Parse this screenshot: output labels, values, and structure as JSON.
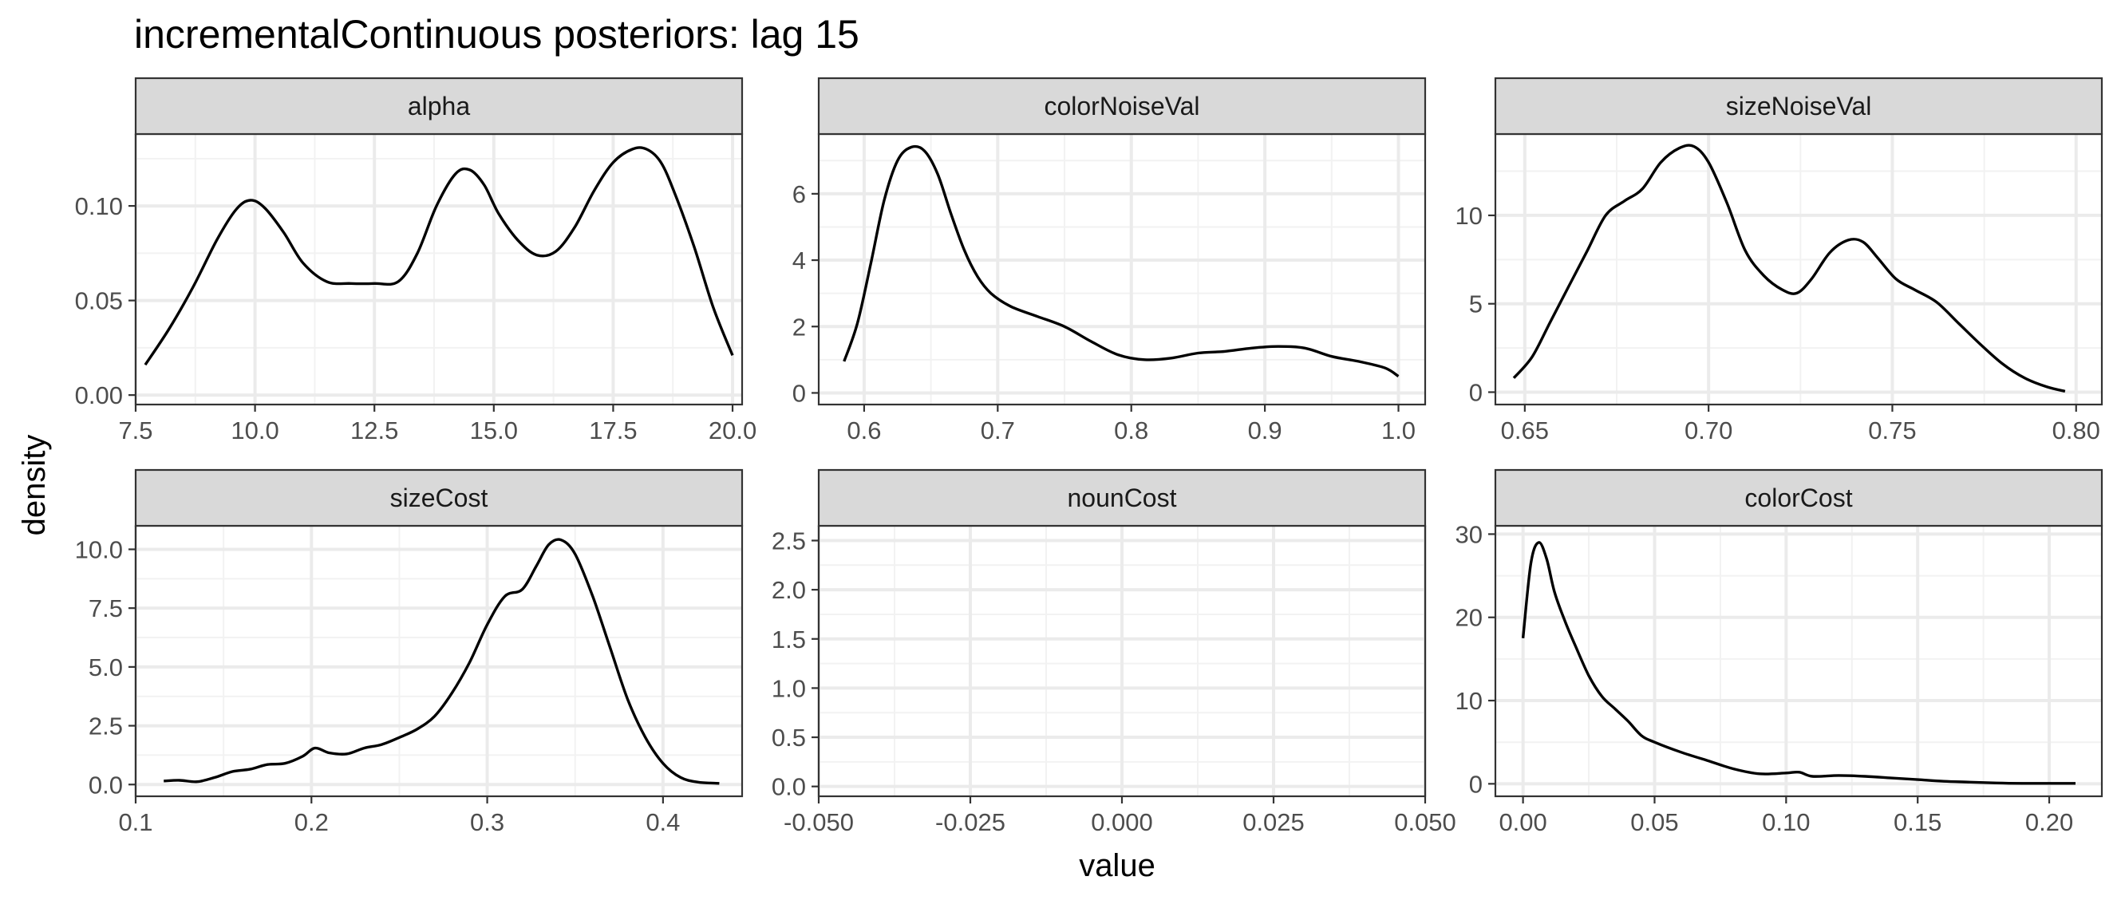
{
  "chart_data": {
    "type": "line",
    "title": "incrementalContinuous posteriors: lag 15",
    "xlabel": "value",
    "ylabel": "density",
    "grid": true,
    "facets": [
      {
        "name": "alpha",
        "xlim": [
          7.5,
          20.2
        ],
        "ylim": [
          -0.005,
          0.138
        ],
        "xticks": [
          7.5,
          10.0,
          12.5,
          15.0,
          17.5,
          20.0
        ],
        "xtick_labels": [
          "7.5",
          "10.0",
          "12.5",
          "15.0",
          "17.5",
          "20.0"
        ],
        "yticks": [
          0.0,
          0.05,
          0.1
        ],
        "ytick_labels": [
          "0.00",
          "0.05",
          "0.10"
        ],
        "x": [
          7.7,
          8.2,
          8.7,
          9.2,
          9.6,
          9.9,
          10.2,
          10.6,
          11.0,
          11.5,
          12.0,
          12.5,
          13.0,
          13.4,
          13.8,
          14.2,
          14.5,
          14.8,
          15.1,
          15.5,
          15.9,
          16.3,
          16.7,
          17.1,
          17.5,
          17.9,
          18.2,
          18.5,
          18.8,
          19.2,
          19.6,
          20.0
        ],
        "y": [
          0.016,
          0.035,
          0.057,
          0.082,
          0.098,
          0.103,
          0.099,
          0.086,
          0.07,
          0.06,
          0.059,
          0.059,
          0.06,
          0.075,
          0.1,
          0.117,
          0.119,
          0.111,
          0.096,
          0.082,
          0.074,
          0.076,
          0.089,
          0.108,
          0.123,
          0.13,
          0.13,
          0.123,
          0.106,
          0.078,
          0.046,
          0.021
        ]
      },
      {
        "name": "colorNoiseVal",
        "xlim": [
          0.566,
          1.02
        ],
        "ylim": [
          -0.35,
          7.8
        ],
        "xticks": [
          0.6,
          0.7,
          0.8,
          0.9,
          1.0
        ],
        "xtick_labels": [
          "0.6",
          "0.7",
          "0.8",
          "0.9",
          "1.0"
        ],
        "yticks": [
          0,
          2,
          4,
          6
        ],
        "ytick_labels": [
          "0",
          "2",
          "4",
          "6"
        ],
        "x": [
          0.585,
          0.595,
          0.605,
          0.615,
          0.625,
          0.635,
          0.645,
          0.655,
          0.665,
          0.675,
          0.685,
          0.695,
          0.71,
          0.73,
          0.75,
          0.77,
          0.79,
          0.81,
          0.83,
          0.85,
          0.87,
          0.89,
          0.91,
          0.93,
          0.95,
          0.97,
          0.99,
          1.0
        ],
        "y": [
          0.95,
          2.1,
          3.9,
          5.8,
          7.0,
          7.4,
          7.3,
          6.6,
          5.4,
          4.3,
          3.5,
          3.0,
          2.6,
          2.3,
          2.0,
          1.55,
          1.15,
          1.0,
          1.05,
          1.2,
          1.25,
          1.35,
          1.4,
          1.35,
          1.1,
          0.95,
          0.75,
          0.5
        ]
      },
      {
        "name": "sizeNoiseVal",
        "xlim": [
          0.642,
          0.807
        ],
        "ylim": [
          -0.7,
          14.6
        ],
        "xticks": [
          0.65,
          0.7,
          0.75,
          0.8
        ],
        "xtick_labels": [
          "0.65",
          "0.70",
          "0.75",
          "0.80"
        ],
        "yticks": [
          0,
          5,
          10
        ],
        "ytick_labels": [
          "0",
          "5",
          "10"
        ],
        "x": [
          0.647,
          0.652,
          0.657,
          0.662,
          0.667,
          0.672,
          0.677,
          0.682,
          0.687,
          0.692,
          0.696,
          0.7,
          0.705,
          0.71,
          0.715,
          0.72,
          0.724,
          0.728,
          0.733,
          0.738,
          0.742,
          0.746,
          0.751,
          0.756,
          0.762,
          0.768,
          0.774,
          0.78,
          0.786,
          0.792,
          0.797
        ],
        "y": [
          0.8,
          2.0,
          4.0,
          6.0,
          8.0,
          10.0,
          10.8,
          11.5,
          13.0,
          13.8,
          13.9,
          13.0,
          10.7,
          8.0,
          6.6,
          5.8,
          5.6,
          6.4,
          7.9,
          8.6,
          8.5,
          7.6,
          6.4,
          5.8,
          5.1,
          3.9,
          2.7,
          1.6,
          0.8,
          0.3,
          0.05
        ]
      },
      {
        "name": "sizeCost",
        "xlim": [
          0.1,
          0.445
        ],
        "ylim": [
          -0.5,
          11.0
        ],
        "xticks": [
          0.1,
          0.2,
          0.3,
          0.4
        ],
        "xtick_labels": [
          "0.1",
          "0.2",
          "0.3",
          "0.4"
        ],
        "yticks": [
          0.0,
          2.5,
          5.0,
          7.5,
          10.0
        ],
        "ytick_labels": [
          "0.0",
          "2.5",
          "5.0",
          "7.5",
          "10.0"
        ],
        "x": [
          0.116,
          0.125,
          0.135,
          0.145,
          0.155,
          0.165,
          0.175,
          0.185,
          0.195,
          0.202,
          0.21,
          0.22,
          0.23,
          0.24,
          0.25,
          0.26,
          0.27,
          0.28,
          0.29,
          0.3,
          0.31,
          0.32,
          0.328,
          0.335,
          0.342,
          0.35,
          0.36,
          0.37,
          0.38,
          0.39,
          0.4,
          0.41,
          0.42,
          0.432
        ],
        "y": [
          0.15,
          0.18,
          0.12,
          0.3,
          0.55,
          0.65,
          0.85,
          0.9,
          1.2,
          1.55,
          1.35,
          1.3,
          1.55,
          1.7,
          2.0,
          2.35,
          2.9,
          3.9,
          5.2,
          6.8,
          8.0,
          8.3,
          9.3,
          10.2,
          10.4,
          9.8,
          8.0,
          5.8,
          3.6,
          2.0,
          0.9,
          0.3,
          0.1,
          0.05
        ]
      },
      {
        "name": "nounCost",
        "xlim": [
          -0.05,
          0.05
        ],
        "ylim": [
          -0.1,
          2.65
        ],
        "xticks": [
          -0.05,
          -0.025,
          0.0,
          0.025,
          0.05
        ],
        "xtick_labels": [
          "-0.050",
          "-0.025",
          "0.000",
          "0.025",
          "0.050"
        ],
        "yticks": [
          0.0,
          0.5,
          1.0,
          1.5,
          2.0,
          2.5
        ],
        "ytick_labels": [
          "0.0",
          "0.5",
          "1.0",
          "1.5",
          "2.0",
          "2.5"
        ],
        "x": [],
        "y": []
      },
      {
        "name": "colorCost",
        "xlim": [
          -0.0105,
          0.22
        ],
        "ylim": [
          -1.5,
          31.0
        ],
        "xticks": [
          0.0,
          0.05,
          0.1,
          0.15,
          0.2
        ],
        "xtick_labels": [
          "0.00",
          "0.05",
          "0.10",
          "0.15",
          "0.20"
        ],
        "yticks": [
          0,
          10,
          20,
          30
        ],
        "ytick_labels": [
          "0",
          "10",
          "20",
          "30"
        ],
        "x": [
          0.0,
          0.003,
          0.006,
          0.009,
          0.012,
          0.016,
          0.02,
          0.025,
          0.03,
          0.035,
          0.04,
          0.045,
          0.05,
          0.06,
          0.07,
          0.08,
          0.09,
          0.1,
          0.105,
          0.11,
          0.12,
          0.13,
          0.14,
          0.15,
          0.16,
          0.17,
          0.18,
          0.19,
          0.21
        ],
        "y": [
          17.5,
          26.5,
          29.0,
          27.0,
          23.0,
          19.5,
          16.5,
          13.0,
          10.5,
          9.0,
          7.5,
          5.8,
          5.0,
          3.8,
          2.8,
          1.8,
          1.2,
          1.3,
          1.4,
          0.9,
          1.0,
          0.9,
          0.7,
          0.5,
          0.3,
          0.2,
          0.1,
          0.05,
          0.05
        ]
      }
    ]
  }
}
